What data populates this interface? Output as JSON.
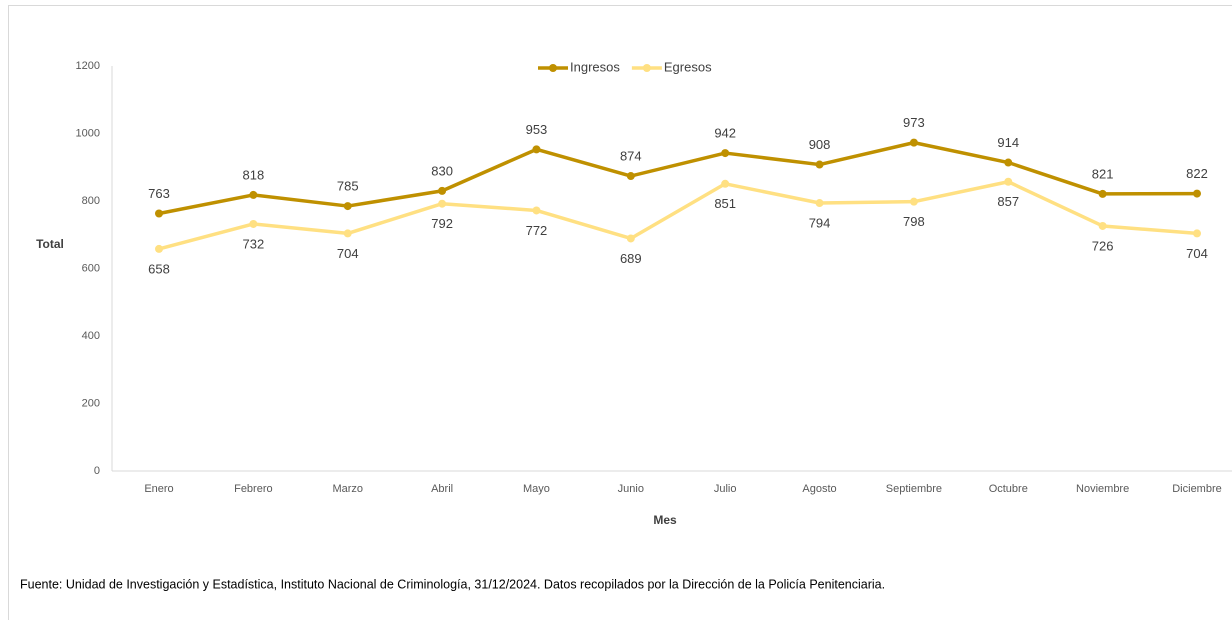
{
  "chart_data": {
    "type": "line",
    "categories": [
      "Enero",
      "Febrero",
      "Marzo",
      "Abril",
      "Mayo",
      "Junio",
      "Julio",
      "Agosto",
      "Septiembre",
      "Octubre",
      "Noviembre",
      "Diciembre"
    ],
    "series": [
      {
        "name": "Ingresos",
        "color": "#bf9000",
        "values": [
          763,
          818,
          785,
          830,
          953,
          874,
          942,
          908,
          973,
          914,
          821,
          822
        ]
      },
      {
        "name": "Egresos",
        "color": "#ffe082",
        "values": [
          658,
          732,
          704,
          792,
          772,
          689,
          851,
          794,
          798,
          857,
          726,
          704
        ]
      }
    ],
    "ylim": [
      0,
      1200
    ],
    "yticks": [
      0,
      200,
      400,
      600,
      800,
      1000,
      1200
    ],
    "xlabel": "Mes",
    "ylabel": "Total",
    "grid": false,
    "legend": "top",
    "source": "Fuente: Unidad de Investigación y Estadística, Instituto Nacional de Criminología,  31/12/2024. Datos recopilados por la Dirección de la Policía Penitenciaria."
  }
}
